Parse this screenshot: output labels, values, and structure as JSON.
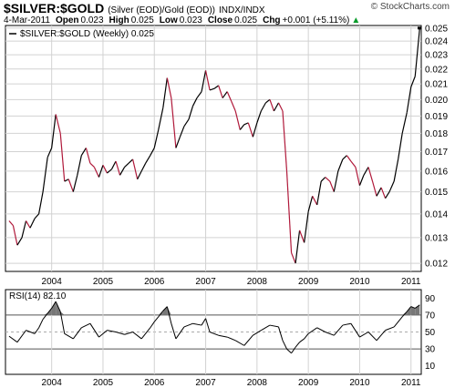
{
  "header": {
    "symbol": "$SILVER:$GOLD",
    "description": "(Silver (EOD)/Gold (EOD))",
    "exchange": "INDX/INDX",
    "watermark": "© StockCharts.com",
    "date": "4-Mar-2011",
    "open_label": "Open",
    "open_value": "0.023",
    "high_label": "High",
    "high_value": "0.025",
    "low_label": "Low",
    "low_value": "0.023",
    "close_label": "Close",
    "close_value": "0.025",
    "chg_label": "Chg",
    "chg_value": "+0.001 (+5.11%)",
    "chg_arrow": "▲"
  },
  "colors": {
    "up": "#000000",
    "down": "#b0193a",
    "rsi_fill": "#777777",
    "grid": "#d2d2d2"
  },
  "chart_data": [
    {
      "type": "line",
      "legend": "$SILVER:$GOLD (Weekly) 0.025",
      "x_ticks": [
        "2004",
        "2005",
        "2006",
        "2007",
        "2008",
        "2009",
        "2010",
        "2011"
      ],
      "xlim": [
        2003.1,
        2011.2
      ],
      "y_ticks": [
        "0.012",
        "0.013",
        "0.014",
        "0.015",
        "0.016",
        "0.017",
        "0.018",
        "0.019",
        "0.020",
        "0.021",
        "0.022",
        "0.023",
        "0.024",
        "0.025"
      ],
      "ylim": [
        0.0117,
        0.0252
      ],
      "scale": "log",
      "grid": true,
      "x": [
        2003.17,
        2003.25,
        2003.33,
        2003.42,
        2003.5,
        2003.58,
        2003.67,
        2003.75,
        2003.83,
        2003.92,
        2004.0,
        2004.08,
        2004.17,
        2004.25,
        2004.33,
        2004.42,
        2004.5,
        2004.58,
        2004.67,
        2004.75,
        2004.83,
        2004.92,
        2005.0,
        2005.08,
        2005.17,
        2005.25,
        2005.33,
        2005.42,
        2005.5,
        2005.58,
        2005.67,
        2005.75,
        2005.83,
        2005.92,
        2006.0,
        2006.08,
        2006.17,
        2006.25,
        2006.33,
        2006.42,
        2006.5,
        2006.58,
        2006.67,
        2006.75,
        2006.83,
        2006.92,
        2007.0,
        2007.08,
        2007.17,
        2007.25,
        2007.33,
        2007.42,
        2007.5,
        2007.58,
        2007.67,
        2007.75,
        2007.83,
        2007.92,
        2008.0,
        2008.08,
        2008.17,
        2008.25,
        2008.33,
        2008.42,
        2008.5,
        2008.58,
        2008.67,
        2008.75,
        2008.83,
        2008.92,
        2009.0,
        2009.08,
        2009.17,
        2009.25,
        2009.33,
        2009.42,
        2009.5,
        2009.58,
        2009.67,
        2009.75,
        2009.83,
        2009.92,
        2010.0,
        2010.08,
        2010.17,
        2010.25,
        2010.33,
        2010.42,
        2010.5,
        2010.58,
        2010.67,
        2010.75,
        2010.83,
        2010.92,
        2011.0,
        2011.08,
        2011.17
      ],
      "y": [
        0.0137,
        0.0135,
        0.0127,
        0.013,
        0.0137,
        0.0134,
        0.0138,
        0.014,
        0.015,
        0.0167,
        0.0172,
        0.0191,
        0.018,
        0.0155,
        0.0156,
        0.015,
        0.0158,
        0.0168,
        0.0172,
        0.0164,
        0.0162,
        0.0157,
        0.0163,
        0.0159,
        0.0161,
        0.0165,
        0.0158,
        0.0162,
        0.0164,
        0.0166,
        0.0156,
        0.016,
        0.0164,
        0.0168,
        0.0172,
        0.0182,
        0.0195,
        0.0214,
        0.0201,
        0.0172,
        0.0178,
        0.0184,
        0.0188,
        0.0196,
        0.0201,
        0.0205,
        0.0219,
        0.0206,
        0.0207,
        0.0209,
        0.0201,
        0.0205,
        0.0199,
        0.0193,
        0.0182,
        0.0185,
        0.0186,
        0.0178,
        0.0186,
        0.0193,
        0.0198,
        0.02,
        0.0193,
        0.0198,
        0.0193,
        0.016,
        0.0124,
        0.012,
        0.0133,
        0.0128,
        0.0141,
        0.0148,
        0.0144,
        0.0155,
        0.0157,
        0.0155,
        0.015,
        0.016,
        0.0166,
        0.0168,
        0.0165,
        0.0162,
        0.0153,
        0.0158,
        0.0162,
        0.0155,
        0.0148,
        0.0152,
        0.0147,
        0.015,
        0.0155,
        0.0166,
        0.018,
        0.0192,
        0.0208,
        0.0215,
        0.025
      ]
    },
    {
      "type": "line",
      "legend": "RSI(14) 82.10",
      "x_ticks": [
        "2004",
        "2005",
        "2006",
        "2007",
        "2008",
        "2009",
        "2010",
        "2011"
      ],
      "xlim": [
        2003.1,
        2011.2
      ],
      "y_ticks": [
        "10",
        "30",
        "50",
        "70",
        "90"
      ],
      "ylim": [
        0,
        100
      ],
      "reference_lines": [
        30,
        70
      ],
      "x": [
        2003.17,
        2003.33,
        2003.5,
        2003.67,
        2003.75,
        2003.83,
        2003.92,
        2004.0,
        2004.08,
        2004.17,
        2004.25,
        2004.42,
        2004.58,
        2004.75,
        2004.92,
        2005.08,
        2005.25,
        2005.42,
        2005.58,
        2005.75,
        2005.92,
        2006.0,
        2006.08,
        2006.17,
        2006.25,
        2006.33,
        2006.42,
        2006.58,
        2006.75,
        2006.92,
        2007.0,
        2007.08,
        2007.25,
        2007.42,
        2007.58,
        2007.75,
        2007.92,
        2008.08,
        2008.25,
        2008.42,
        2008.5,
        2008.58,
        2008.67,
        2008.75,
        2008.83,
        2008.92,
        2009.0,
        2009.17,
        2009.33,
        2009.5,
        2009.67,
        2009.83,
        2010.0,
        2010.17,
        2010.33,
        2010.5,
        2010.67,
        2010.83,
        2010.92,
        2011.0,
        2011.08,
        2011.17
      ],
      "y": [
        45,
        38,
        52,
        48,
        55,
        65,
        72,
        78,
        86,
        74,
        48,
        42,
        55,
        60,
        44,
        52,
        50,
        47,
        50,
        42,
        55,
        62,
        68,
        75,
        80,
        60,
        42,
        56,
        60,
        58,
        66,
        50,
        46,
        44,
        40,
        34,
        46,
        52,
        58,
        56,
        40,
        30,
        25,
        32,
        38,
        42,
        48,
        55,
        50,
        46,
        58,
        60,
        44,
        50,
        40,
        52,
        56,
        68,
        74,
        80,
        78,
        82
      ]
    }
  ]
}
